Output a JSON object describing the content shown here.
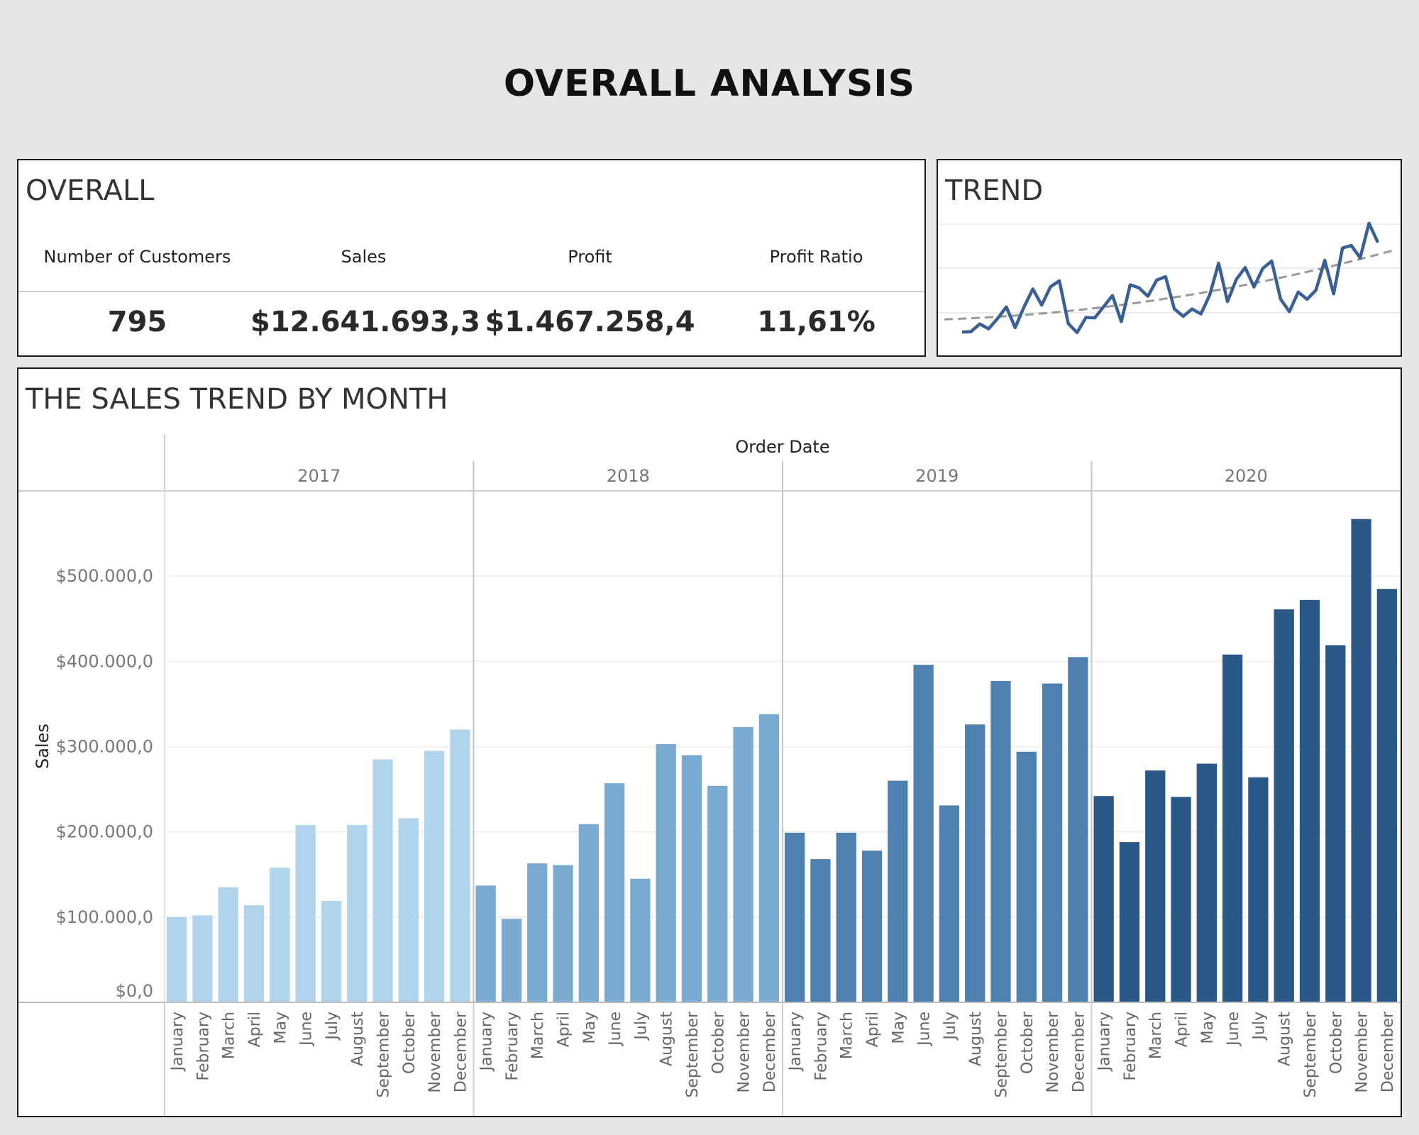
{
  "page_title": "OVERALL ANALYSIS",
  "overall": {
    "title": "OVERALL",
    "kpis": [
      {
        "label": "Number of Customers",
        "value": "795"
      },
      {
        "label": "Sales",
        "value": "$12.641.693,3"
      },
      {
        "label": "Profit",
        "value": "$1.467.258,4"
      },
      {
        "label": "Profit Ratio",
        "value": "11,61%"
      }
    ]
  },
  "trend": {
    "title": "TREND"
  },
  "sales_trend": {
    "title": "THE SALES TREND BY MONTH"
  },
  "colors": {
    "y2017": "#b0d4ec",
    "y2018": "#7aaad1",
    "y2019": "#4e80b0",
    "y2020": "#2b5886",
    "trend_line": "#3a5f95",
    "trend_dashed": "#999999"
  },
  "chart_data": [
    {
      "type": "line",
      "title": "TREND",
      "x": [
        "2017-01",
        "2017-02",
        "2017-03",
        "2017-04",
        "2017-05",
        "2017-06",
        "2017-07",
        "2017-08",
        "2017-09",
        "2017-10",
        "2017-11",
        "2017-12",
        "2018-01",
        "2018-02",
        "2018-03",
        "2018-04",
        "2018-05",
        "2018-06",
        "2018-07",
        "2018-08",
        "2018-09",
        "2018-10",
        "2018-11",
        "2018-12",
        "2019-01",
        "2019-02",
        "2019-03",
        "2019-04",
        "2019-05",
        "2019-06",
        "2019-07",
        "2019-08",
        "2019-09",
        "2019-10",
        "2019-11",
        "2019-12",
        "2020-01",
        "2020-02",
        "2020-03",
        "2020-04",
        "2020-05",
        "2020-06",
        "2020-07",
        "2020-08",
        "2020-09",
        "2020-10",
        "2020-11",
        "2020-12"
      ],
      "series": [
        {
          "values": [
            100000,
            102000,
            135000,
            114000,
            158000,
            208000,
            119000,
            208000,
            285000,
            216000,
            295000,
            320000,
            137000,
            98000,
            163000,
            161000,
            209000,
            257000,
            145000,
            303000,
            290000,
            254000,
            323000,
            338000,
            199000,
            168000,
            199000,
            178000,
            260000,
            396000,
            231000,
            326000,
            377000,
            294000,
            374000,
            405000,
            242000,
            188000,
            272000,
            241000,
            280000,
            408000,
            264000,
            461000,
            472000,
            419000,
            567000,
            485000
          ]
        },
        {
          "trendline": true,
          "style": "dashed"
        }
      ],
      "grid": true,
      "axes_labels": false
    },
    {
      "type": "bar",
      "title": "THE SALES TREND BY MONTH",
      "xlabel": "Order Date",
      "ylabel": "Sales",
      "years": [
        "2017",
        "2018",
        "2019",
        "2020"
      ],
      "categories": [
        "January",
        "February",
        "March",
        "April",
        "May",
        "June",
        "July",
        "August",
        "September",
        "October",
        "November",
        "December"
      ],
      "yticks": [
        "$0,0",
        "$100.000,0",
        "$200.000,0",
        "$300.000,0",
        "$400.000,0",
        "$500.000,0"
      ],
      "ylim": [
        0,
        600000
      ],
      "series": [
        {
          "name": "2017",
          "values": [
            100000,
            102000,
            135000,
            114000,
            158000,
            208000,
            119000,
            208000,
            285000,
            216000,
            295000,
            320000
          ]
        },
        {
          "name": "2018",
          "values": [
            137000,
            98000,
            163000,
            161000,
            209000,
            257000,
            145000,
            303000,
            290000,
            254000,
            323000,
            338000
          ]
        },
        {
          "name": "2019",
          "values": [
            199000,
            168000,
            199000,
            178000,
            260000,
            396000,
            231000,
            326000,
            377000,
            294000,
            374000,
            405000
          ]
        },
        {
          "name": "2020",
          "values": [
            242000,
            188000,
            272000,
            241000,
            280000,
            408000,
            264000,
            461000,
            472000,
            419000,
            567000,
            485000
          ]
        }
      ],
      "grid": true
    }
  ]
}
